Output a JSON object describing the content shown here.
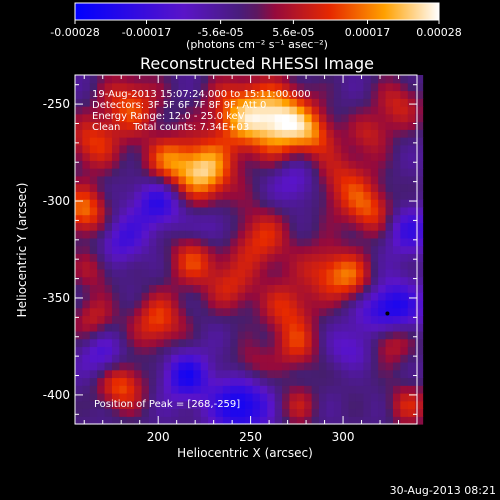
{
  "chart_data": {
    "type": "heatmap",
    "title": "Reconstructed RHESSI Image",
    "xlabel": "Heliocentric X (arcsec)",
    "ylabel": "Heliocentric Y (arcsec)",
    "xlim": [
      155,
      340
    ],
    "ylim": [
      -415,
      -235
    ],
    "x_ticks": [
      200,
      250,
      300
    ],
    "y_ticks": [
      -250,
      -300,
      -350,
      -400
    ],
    "colorbar": {
      "min": -0.00028,
      "max": 0.00028,
      "tick_values": [
        -0.00028,
        -0.00017,
        -5.6e-05,
        5.6e-05,
        0.00017,
        0.00028
      ],
      "tick_labels": [
        "-0.00028",
        "-0.00017",
        "-5.6e-05",
        "5.6e-05",
        "0.00017",
        "0.00028"
      ],
      "units_text": "(photons cm⁻² s⁻¹ asec⁻²)"
    },
    "annotations": [
      "19-Aug-2013 15:07:24.000 to 15:11:00.000",
      "Detectors: 3F 5F 6F 7F 8F 9F, Att 0",
      "Energy Range: 12.0 - 25.0 keV",
      "Clean    Total counts: 7.34E+03"
    ],
    "peak_text": "Position of Peak = [268,-259]",
    "peak": [
      268,
      -259
    ],
    "blobs": [
      {
        "x": 268,
        "y": -259,
        "s": 12,
        "v": 0.00028
      },
      {
        "x": 245,
        "y": -255,
        "s": 13,
        "v": 0.00022
      },
      {
        "x": 225,
        "y": -285,
        "s": 11,
        "v": 0.00026
      },
      {
        "x": 205,
        "y": -280,
        "s": 10,
        "v": 0.00018
      },
      {
        "x": 185,
        "y": -250,
        "s": 11,
        "v": 0.00017
      },
      {
        "x": 165,
        "y": -270,
        "s": 10,
        "v": 0.00015
      },
      {
        "x": 160,
        "y": -305,
        "s": 9,
        "v": 0.0002
      },
      {
        "x": 300,
        "y": -290,
        "s": 12,
        "v": 0.00014
      },
      {
        "x": 285,
        "y": -265,
        "s": 8,
        "v": 0.00012
      },
      {
        "x": 330,
        "y": -250,
        "s": 9,
        "v": 0.00012
      },
      {
        "x": 315,
        "y": -265,
        "s": 8,
        "v": 0.0001
      },
      {
        "x": 255,
        "y": -320,
        "s": 12,
        "v": 0.00015
      },
      {
        "x": 220,
        "y": -330,
        "s": 10,
        "v": 0.00016
      },
      {
        "x": 240,
        "y": -345,
        "s": 9,
        "v": 0.00012
      },
      {
        "x": 270,
        "y": -355,
        "s": 10,
        "v": 0.00014
      },
      {
        "x": 290,
        "y": -335,
        "s": 10,
        "v": 0.00013
      },
      {
        "x": 305,
        "y": -340,
        "s": 9,
        "v": 0.00016
      },
      {
        "x": 315,
        "y": -305,
        "s": 9,
        "v": 0.00015
      },
      {
        "x": 325,
        "y": -370,
        "s": 9,
        "v": 0.00022
      },
      {
        "x": 305,
        "y": -385,
        "s": 8,
        "v": 0.00012
      },
      {
        "x": 275,
        "y": -375,
        "s": 9,
        "v": 0.00013
      },
      {
        "x": 250,
        "y": -385,
        "s": 8,
        "v": 0.0001
      },
      {
        "x": 200,
        "y": -362,
        "s": 10,
        "v": 0.00017
      },
      {
        "x": 165,
        "y": -360,
        "s": 8,
        "v": 0.00011
      },
      {
        "x": 180,
        "y": -395,
        "s": 9,
        "v": 0.00018
      },
      {
        "x": 275,
        "y": -405,
        "s": 8,
        "v": 0.0001
      },
      {
        "x": 335,
        "y": -405,
        "s": 8,
        "v": 0.00012
      },
      {
        "x": 165,
        "y": -335,
        "s": 8,
        "v": 9e-05
      },
      {
        "x": 325,
        "y": -358,
        "s": 11,
        "v": -0.00026
      },
      {
        "x": 245,
        "y": -405,
        "s": 11,
        "v": -0.00022
      },
      {
        "x": 215,
        "y": -390,
        "s": 9,
        "v": -0.00018
      },
      {
        "x": 200,
        "y": -300,
        "s": 10,
        "v": -0.00017
      },
      {
        "x": 180,
        "y": -320,
        "s": 9,
        "v": -0.00012
      },
      {
        "x": 305,
        "y": -380,
        "s": 9,
        "v": -0.00017
      },
      {
        "x": 335,
        "y": -315,
        "s": 9,
        "v": -0.00013
      },
      {
        "x": 275,
        "y": -290,
        "s": 9,
        "v": -0.00011
      },
      {
        "x": 230,
        "y": -315,
        "s": 8,
        "v": -0.0001
      },
      {
        "x": 170,
        "y": -380,
        "s": 8,
        "v": -0.00012
      }
    ]
  },
  "footer": {
    "timestamp": "30-Aug-2013 08:21"
  }
}
